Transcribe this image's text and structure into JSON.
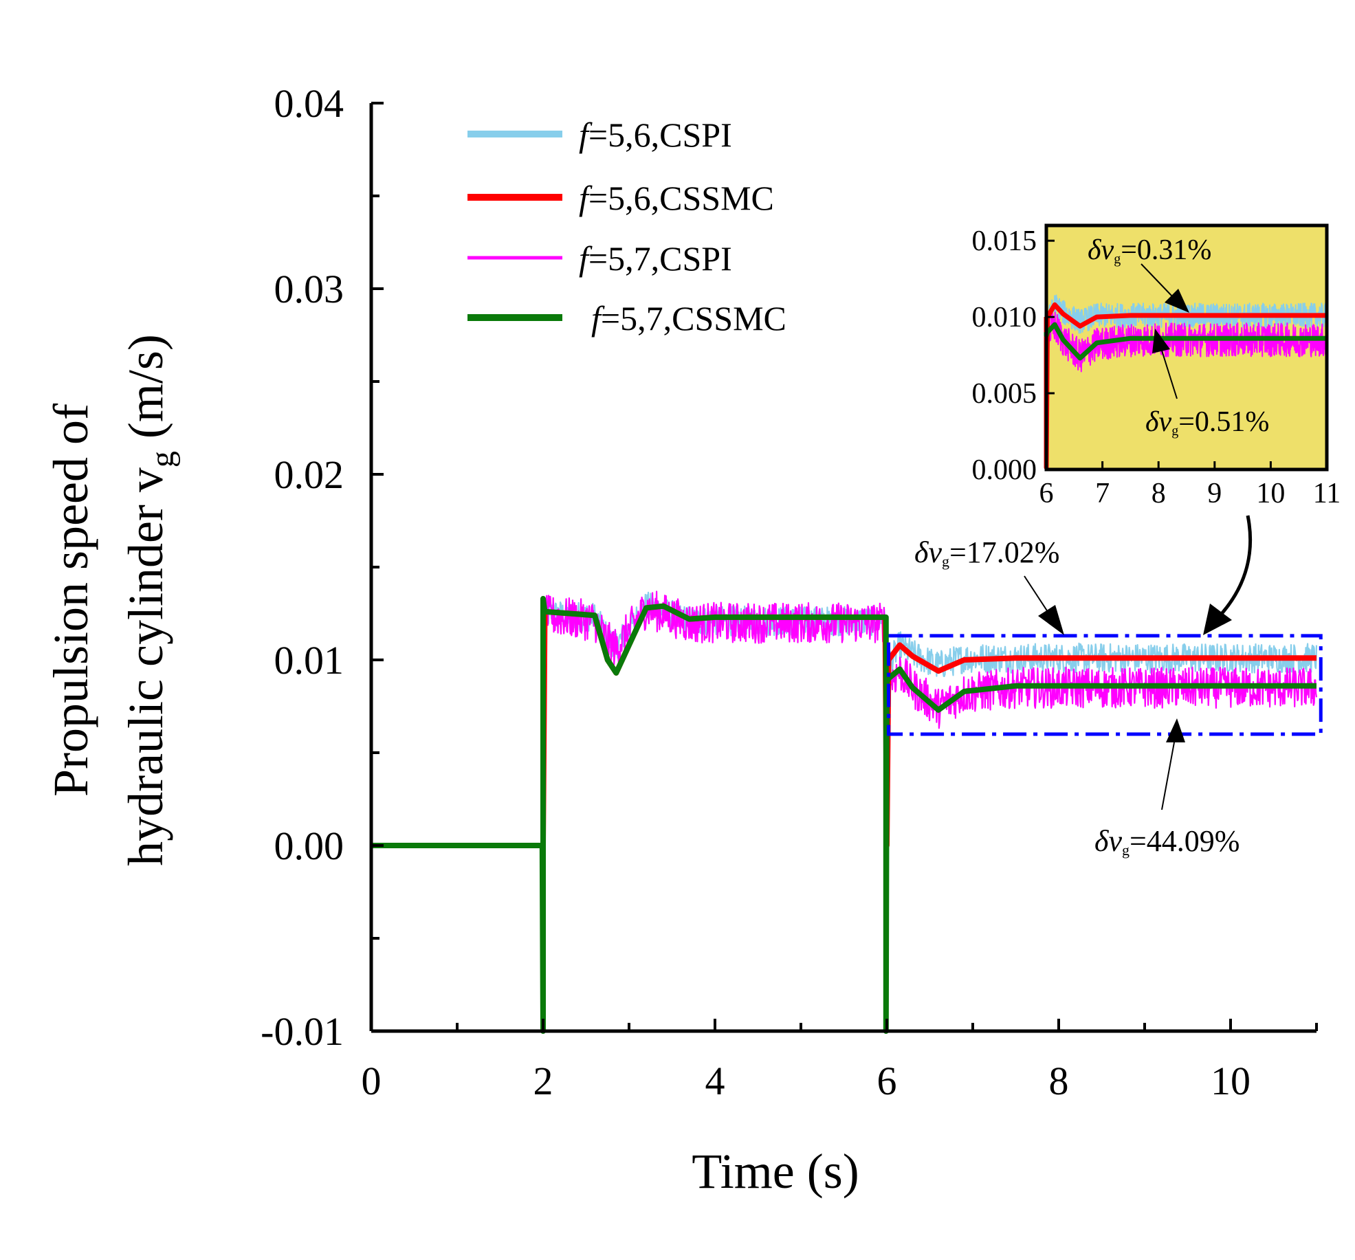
{
  "chart_data": [
    {
      "type": "line",
      "title": "",
      "xlabel": "Time (s)",
      "ylabel": {
        "line1": "Propulsion speed of",
        "line2": "hydraulic cylinder v",
        "sub": "g",
        "unit": " (m/s)"
      },
      "xlim": [
        0,
        11
      ],
      "ylim": [
        -0.01,
        0.04
      ],
      "x_ticks": [
        0,
        2,
        4,
        6,
        8,
        10
      ],
      "x_tick_labels": [
        "0",
        "2",
        "4",
        "6",
        "8",
        "10"
      ],
      "y_ticks": [
        -0.01,
        0.0,
        0.01,
        0.02,
        0.03,
        0.04
      ],
      "y_tick_labels": [
        "-0.01",
        "0.00",
        "0.01",
        "0.02",
        "0.03",
        "0.04"
      ],
      "grid": false,
      "legend_position": "top-left",
      "series": [
        {
          "name": "f=5,6,CSPI",
          "label_italic": "f",
          "label_rest": "=5,6,CSPI",
          "color": "#87CEEB",
          "noise": 0.0008,
          "x": [
            0,
            2,
            2.02,
            2.6,
            2.75,
            2.85,
            3.0,
            3.2,
            3.4,
            3.7,
            4.0,
            5.0,
            5.98,
            6.0,
            6.02,
            6.15,
            6.3,
            6.6,
            6.9,
            7.5,
            11
          ],
          "y": [
            0,
            0,
            0.0125,
            0.0123,
            0.0112,
            0.0108,
            0.0117,
            0.0129,
            0.0126,
            0.0121,
            0.0121,
            0.0121,
            0.0121,
            0,
            0.0097,
            0.0108,
            0.0103,
            0.0097,
            0.0101,
            0.0101,
            0.0101
          ]
        },
        {
          "name": "f=5,7,CSPI",
          "label_italic": "f",
          "label_rest": "=5,7,CSPI",
          "color": "#FF00FF",
          "noise": 0.0011,
          "x": [
            0,
            2,
            2.02,
            2.6,
            2.75,
            2.85,
            3.0,
            3.2,
            3.4,
            3.7,
            4.0,
            5.0,
            5.98,
            6.0,
            6.02,
            6.15,
            6.3,
            6.6,
            6.9,
            7.5,
            11
          ],
          "y": [
            0,
            0,
            0.0124,
            0.0121,
            0.011,
            0.0106,
            0.0116,
            0.0128,
            0.0125,
            0.012,
            0.012,
            0.012,
            0.012,
            0,
            0.0088,
            0.0094,
            0.0085,
            0.0074,
            0.0082,
            0.0085,
            0.0085
          ]
        },
        {
          "name": "f=5,6,CSSMC",
          "label_italic": "f",
          "label_rest": "=5,6,CSSMC",
          "color": "#FF0000",
          "noise": 0,
          "x": [
            0,
            2,
            2.02,
            2.6,
            2.75,
            2.85,
            3.0,
            3.2,
            3.4,
            3.7,
            4.0,
            5.0,
            5.98,
            6.0,
            6.02,
            6.15,
            6.3,
            6.6,
            6.9,
            7.5,
            11
          ],
          "y": [
            0,
            0,
            0.0126,
            0.0124,
            0.01,
            0.0093,
            0.0108,
            0.0128,
            0.0129,
            0.0122,
            0.0123,
            0.0123,
            0.0123,
            0,
            0.01,
            0.0108,
            0.0102,
            0.0094,
            0.01,
            0.0101,
            0.0101
          ]
        },
        {
          "name": " f=5,7,CSSMC",
          "label_italic": "f",
          "label_rest": "=5,7,CSSMC",
          "color": "#0A7A0A",
          "noise": 0,
          "x": [
            0,
            1.99,
            2.0,
            2.0,
            2.02,
            2.6,
            2.75,
            2.85,
            3.0,
            3.2,
            3.4,
            3.7,
            4.0,
            5.0,
            5.98,
            5.99,
            5.99,
            6.0,
            6.02,
            6.15,
            6.3,
            6.6,
            6.9,
            7.5,
            11
          ],
          "y": [
            0,
            0,
            -0.0125,
            0.0133,
            0.0126,
            0.0124,
            0.01,
            0.0093,
            0.0108,
            0.0128,
            0.0129,
            0.0122,
            0.0123,
            0.0123,
            0.0123,
            0.0123,
            -0.0125,
            0.0088,
            0.009,
            0.0095,
            0.0085,
            0.0073,
            0.0083,
            0.0086,
            0.0086
          ]
        }
      ],
      "zoom_box": {
        "x": [
          6.02,
          11.05
        ],
        "y": [
          0.006,
          0.0113
        ],
        "color": "#0000FF"
      },
      "annotations": [
        {
          "delta": "δ",
          "v": "v",
          "sub": "g",
          "text": "=17.02%",
          "anchor_x": 7.93,
          "anchor_y": 0.0112
        },
        {
          "delta": "δ",
          "v": "v",
          "sub": "g",
          "text": "=44.09%",
          "anchor_x": 9.4,
          "anchor_y": 0.0061
        }
      ]
    },
    {
      "type": "line",
      "role": "inset",
      "background": "#EEE06A",
      "xlim": [
        6,
        11
      ],
      "ylim": [
        0.0,
        0.016
      ],
      "x_ticks": [
        6,
        7,
        8,
        9,
        10,
        11
      ],
      "x_tick_labels": [
        "6",
        "7",
        "8",
        "9",
        "10",
        "11"
      ],
      "y_ticks": [
        0.0,
        0.005,
        0.01,
        0.015
      ],
      "y_tick_labels": [
        "0.000",
        "0.005",
        "0.010",
        "0.015"
      ],
      "annotations": [
        {
          "delta": "δ",
          "v": "v",
          "sub": "g",
          "text": "=0.31%",
          "anchor_x": 8.55,
          "anchor_y": 0.0102
        },
        {
          "delta": "δ",
          "v": "v",
          "sub": "g",
          "text": "=0.51%",
          "anchor_x": 8.0,
          "anchor_y": 0.0087
        }
      ]
    }
  ]
}
